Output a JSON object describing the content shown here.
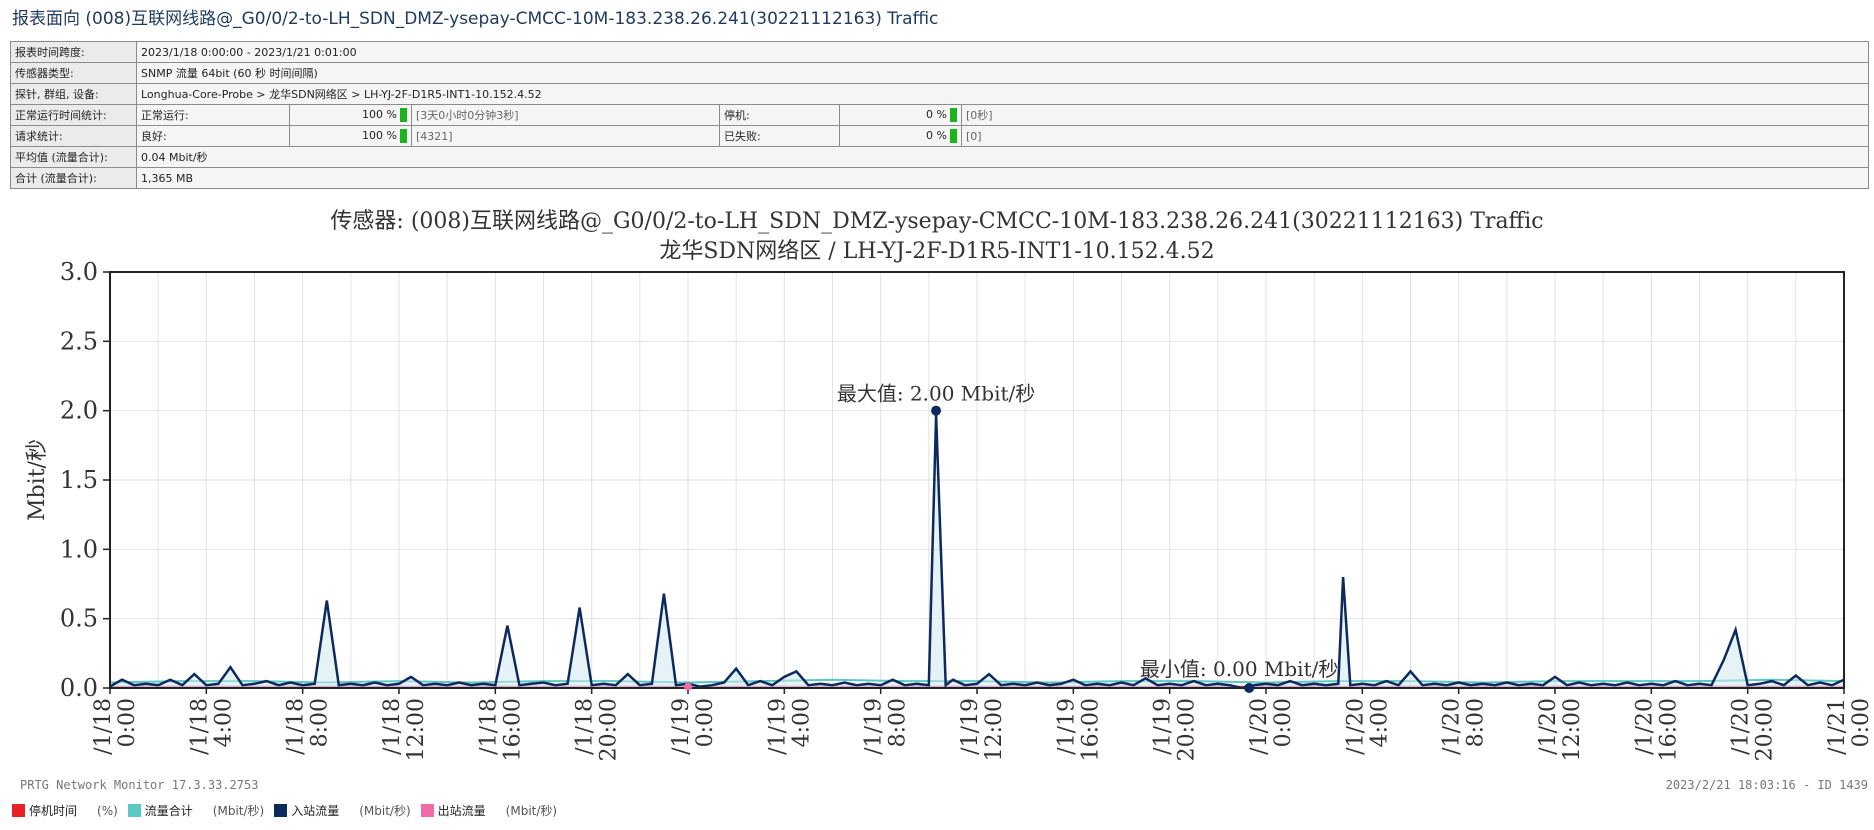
{
  "report_title": "报表面向 (008)互联网线路@_G0/0/2-to-LH_SDN_DMZ-ysepay-CMCC-10M-183.238.26.241(30221112163) Traffic",
  "info": {
    "time_span_label": "报表时间跨度:",
    "time_span_value": "2023/1/18 0:00:00 - 2023/1/21 0:01:00",
    "sensor_type_label": "传感器类型:",
    "sensor_type_value": "SNMP 流量 64bit (60 秒 时间间隔)",
    "probe_label": "探针, 群组, 设备:",
    "probe_value": "Longhua-Core-Probe > 龙华SDN网络区 > LH-YJ-2F-D1R5-INT1-10.152.4.52",
    "uptime_label": "正常运行时间统计:",
    "up_label": "正常运行:",
    "up_pct": "100 %",
    "up_detail": "[3天0小时0分钟3秒]",
    "down_label": "停机:",
    "down_pct": "0 %",
    "down_detail": "[0秒]",
    "request_label": "请求统计:",
    "good_label": "良好:",
    "good_pct": "100 %",
    "good_detail": "[4321]",
    "failed_label": "已失败:",
    "failed_pct": "0 %",
    "failed_detail": "[0]",
    "avg_label": "平均值 (流量合计):",
    "avg_value": "0.04 Mbit/秒",
    "total_label": "合计 (流量合计):",
    "total_value": "1,365 MB"
  },
  "chart_title_1": "传感器: (008)互联网线路@_G0/0/2-to-LH_SDN_DMZ-ysepay-CMCC-10M-183.238.26.241(30221112163) Traffic",
  "chart_title_2": "龙华SDN网络区 / LH-YJ-2F-D1R5-INT1-10.152.4.52",
  "footer_left": "PRTG Network Monitor 17.3.33.2753",
  "footer_right": "2023/2/21 18:03:16 - ID 1439",
  "legend": [
    {
      "label": "停机时间",
      "unit": "(%)",
      "color": "#e8202a"
    },
    {
      "label": "流量合计",
      "unit": "(Mbit/秒)",
      "color": "#5cc8c4"
    },
    {
      "label": "入站流量",
      "unit": "(Mbit/秒)",
      "color": "#0e2a5c"
    },
    {
      "label": "出站流量",
      "unit": "(Mbit/秒)",
      "color": "#f06ca8"
    }
  ],
  "chart_data": {
    "type": "line",
    "ylabel": "Mbit/秒",
    "ylim": [
      0,
      3.0
    ],
    "yticks": [
      "0.0",
      "0.5",
      "1.0",
      "1.5",
      "2.0",
      "2.5",
      "3.0"
    ],
    "x_hours_range": [
      0,
      72
    ],
    "x_tick_labels": [
      "/1/18 0:00",
      "/1/18 4:00",
      "/1/18 8:00",
      "/1/18 12:00",
      "/1/18 16:00",
      "/1/18 20:00",
      "/1/19 0:00",
      "/1/19 4:00",
      "/1/19 8:00",
      "/1/19 12:00",
      "/1/19 16:00",
      "/1/19 20:00",
      "/1/20 0:00",
      "/1/20 4:00",
      "/1/20 8:00",
      "/1/20 12:00",
      "/1/20 16:00",
      "/1/20 20:00",
      "/1/21 0:00"
    ],
    "grid": true,
    "max_annotation": {
      "text": "最大值: 2.00 Mbit/秒",
      "x": 34.3,
      "y": 2.0
    },
    "min_annotation": {
      "text": "最小值: 0.00 Mbit/秒",
      "x": 47.3,
      "y": 0.0
    },
    "series": [
      {
        "name": "入站流量",
        "color": "#0e2a5c",
        "x": [
          0,
          0.5,
          1,
          1.5,
          2,
          2.5,
          3,
          3.5,
          4,
          4.5,
          5,
          5.5,
          6,
          6.5,
          7,
          7.5,
          8,
          8.5,
          9,
          9.5,
          10,
          10.5,
          11,
          11.5,
          12,
          12.5,
          13,
          13.5,
          14,
          14.5,
          15,
          15.5,
          16,
          16.5,
          17,
          17.5,
          18,
          18.5,
          19,
          19.5,
          20,
          20.5,
          21,
          21.5,
          22,
          22.5,
          23,
          23.5,
          24,
          24.5,
          25,
          25.5,
          26,
          26.5,
          27,
          27.5,
          28,
          28.5,
          29,
          29.5,
          30,
          30.5,
          31,
          31.5,
          32,
          32.5,
          33,
          33.5,
          34,
          34.3,
          34.7,
          35,
          35.5,
          36,
          36.5,
          37,
          37.5,
          38,
          38.5,
          39,
          39.5,
          40,
          40.5,
          41,
          41.5,
          42,
          42.5,
          43,
          43.5,
          44,
          44.5,
          45,
          45.5,
          46,
          46.5,
          47,
          47.5,
          48,
          48.5,
          49,
          49.5,
          50,
          50.5,
          51,
          51.2,
          51.5,
          52,
          52.5,
          53,
          53.5,
          54,
          54.5,
          55,
          55.5,
          56,
          56.5,
          57,
          57.5,
          58,
          58.5,
          59,
          59.5,
          60,
          60.5,
          61,
          61.5,
          62,
          62.5,
          63,
          63.5,
          64,
          64.5,
          65,
          65.5,
          66,
          66.5,
          67,
          67.5,
          68,
          68.5,
          69,
          69.5,
          70,
          70.5,
          71,
          71.5,
          72
        ],
        "y": [
          0.01,
          0.06,
          0.02,
          0.03,
          0.02,
          0.06,
          0.02,
          0.1,
          0.02,
          0.03,
          0.15,
          0.02,
          0.03,
          0.05,
          0.02,
          0.04,
          0.02,
          0.03,
          0.63,
          0.02,
          0.03,
          0.02,
          0.04,
          0.02,
          0.03,
          0.08,
          0.02,
          0.03,
          0.02,
          0.04,
          0.02,
          0.03,
          0.02,
          0.45,
          0.02,
          0.03,
          0.04,
          0.02,
          0.03,
          0.58,
          0.02,
          0.03,
          0.02,
          0.1,
          0.02,
          0.03,
          0.68,
          0.02,
          0.03,
          0.01,
          0.02,
          0.04,
          0.14,
          0.02,
          0.05,
          0.02,
          0.08,
          0.12,
          0.02,
          0.03,
          0.02,
          0.04,
          0.02,
          0.03,
          0.02,
          0.06,
          0.02,
          0.03,
          0.02,
          1.97,
          0.02,
          0.06,
          0.02,
          0.03,
          0.1,
          0.02,
          0.03,
          0.02,
          0.04,
          0.02,
          0.03,
          0.06,
          0.02,
          0.03,
          0.02,
          0.04,
          0.02,
          0.07,
          0.02,
          0.03,
          0.02,
          0.05,
          0.02,
          0.03,
          0.02,
          0.0,
          0.02,
          0.03,
          0.02,
          0.05,
          0.02,
          0.03,
          0.02,
          0.03,
          0.8,
          0.02,
          0.03,
          0.02,
          0.05,
          0.02,
          0.12,
          0.02,
          0.03,
          0.02,
          0.04,
          0.02,
          0.03,
          0.02,
          0.04,
          0.02,
          0.03,
          0.02,
          0.08,
          0.02,
          0.04,
          0.02,
          0.03,
          0.02,
          0.04,
          0.02,
          0.03,
          0.02,
          0.05,
          0.02,
          0.03,
          0.02,
          0.2,
          0.42,
          0.02,
          0.03,
          0.05,
          0.02,
          0.09,
          0.02,
          0.04,
          0.02,
          0.06
        ]
      },
      {
        "name": "流量合计",
        "color": "#5cc8c4",
        "x": [
          0,
          3,
          6,
          9,
          12,
          15,
          18,
          21,
          24,
          27,
          30,
          33,
          36,
          39,
          42,
          45,
          48,
          51,
          54,
          57,
          60,
          63,
          66,
          69,
          72
        ],
        "y": [
          0.04,
          0.05,
          0.05,
          0.04,
          0.05,
          0.04,
          0.05,
          0.05,
          0.04,
          0.05,
          0.06,
          0.05,
          0.05,
          0.04,
          0.05,
          0.05,
          0.04,
          0.05,
          0.05,
          0.04,
          0.05,
          0.05,
          0.05,
          0.06,
          0.05
        ]
      },
      {
        "name": "出站流量",
        "color": "#f06ca8",
        "x": [
          0,
          72
        ],
        "y": [
          0.01,
          0.01
        ]
      }
    ]
  }
}
